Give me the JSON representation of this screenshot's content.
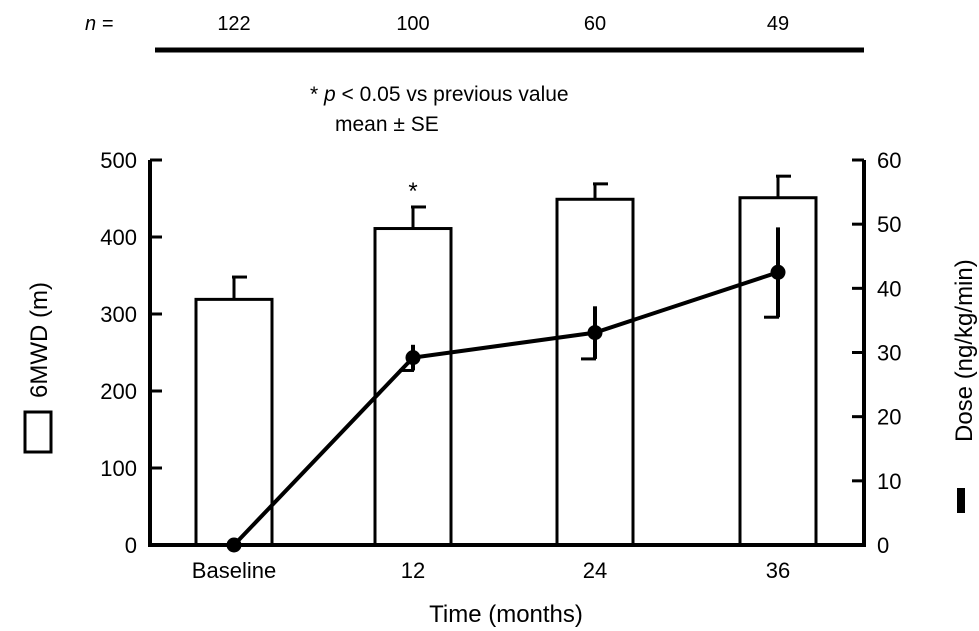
{
  "chart_data": {
    "type": "bar",
    "categories": [
      "Baseline",
      "12",
      "24",
      "36"
    ],
    "n_label": "n =",
    "n_values": [
      "122",
      "100",
      "60",
      "49"
    ],
    "annotation": {
      "line1_prefix": "* ",
      "line1_italic": "p",
      "line1_rest": " < 0.05 vs previous value",
      "line2": "mean ± SE"
    },
    "significance_marks": [
      {
        "category": "12",
        "symbol": "*"
      }
    ],
    "xlabel": "Time (months)",
    "ylabel_left": "6MWD (m)",
    "ylabel_right": "Dose (ng/kg/min)",
    "ylim_left": [
      0,
      500
    ],
    "ylim_right": [
      0,
      60
    ],
    "yticks_left": [
      0,
      100,
      200,
      300,
      400,
      500
    ],
    "yticks_right": [
      0,
      10,
      20,
      30,
      40,
      50,
      60
    ],
    "series": [
      {
        "type": "bar",
        "axis": "left",
        "values": [
          319,
          411,
          449,
          451
        ],
        "se": [
          29,
          28,
          20,
          28
        ]
      },
      {
        "type": "line",
        "axis": "right",
        "values": [
          0,
          29.2,
          33.1,
          42.5
        ],
        "se": [
          0,
          2.0,
          4.1,
          7.0
        ]
      }
    ],
    "grid": false,
    "legend": "axis-label-symbols"
  }
}
